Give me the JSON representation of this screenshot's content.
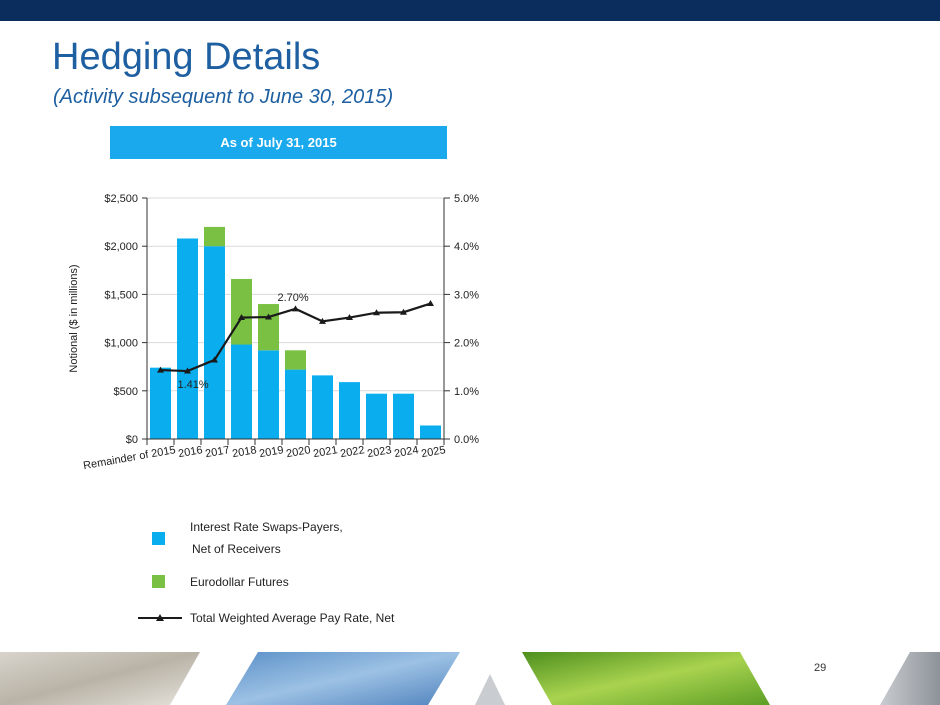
{
  "header": {
    "title": "Hedging Details",
    "subtitle": "(Activity subsequent to June 30, 2015)",
    "banner": "As of July 31, 2015"
  },
  "colors": {
    "swaps": "#0aaeef",
    "futures": "#7ac143",
    "line": "#1a1a1a",
    "banner": "#1aa9ec",
    "title": "#1d5fa0"
  },
  "chart_data": {
    "type": "bar",
    "categories": [
      "Remainder of 2015",
      "2016",
      "2017",
      "2018",
      "2019",
      "2020",
      "2021",
      "2022",
      "2023",
      "2024",
      "2025"
    ],
    "series": [
      {
        "name": "Interest Rate Swaps-Payers, Net of Receivers",
        "kind": "bar",
        "stacked": true,
        "values": [
          740,
          2080,
          2000,
          980,
          920,
          720,
          660,
          590,
          470,
          470,
          140
        ]
      },
      {
        "name": "Eurodollar Futures",
        "kind": "bar",
        "stacked": true,
        "values": [
          0,
          0,
          200,
          680,
          480,
          200,
          0,
          0,
          0,
          0,
          0
        ]
      },
      {
        "name": "Total Weighted Average Pay Rate, Net",
        "kind": "line",
        "axis": "right",
        "values": [
          1.43,
          1.41,
          1.64,
          2.52,
          2.53,
          2.7,
          2.44,
          2.52,
          2.62,
          2.63,
          2.81
        ]
      }
    ],
    "ylabel": "Notional ($ in millions)",
    "ylim": [
      0,
      2500
    ],
    "y_ticks": [
      "$0",
      "$500",
      "$1,000",
      "$1,500",
      "$2,000",
      "$2,500"
    ],
    "y2lim": [
      0,
      5
    ],
    "y2_ticks": [
      "0.0%",
      "1.0%",
      "2.0%",
      "3.0%",
      "4.0%",
      "5.0%"
    ],
    "annotations": [
      {
        "category": "2016",
        "text": "1.41%"
      },
      {
        "category": "2020",
        "text": "2.70%"
      }
    ],
    "grid": true,
    "legend_position": "bottom"
  },
  "legend": {
    "swaps_line1": "Interest Rate Swaps-Payers,",
    "swaps_line2": "Net of Receivers",
    "futures": "Eurodollar Futures",
    "rate": "Total Weighted Average Pay Rate, Net"
  },
  "footer": {
    "page_number": "29"
  }
}
